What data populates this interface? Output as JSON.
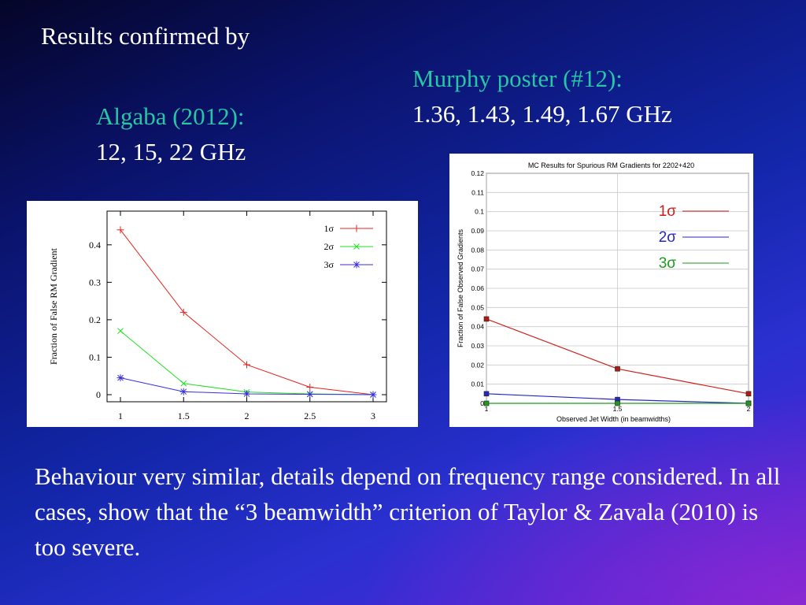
{
  "slide": {
    "title": "Results confirmed by",
    "algaba_heading": "Algaba (2012):",
    "algaba_freqs": "12, 15, 22 GHz",
    "murphy_heading": "Murphy poster (#12):",
    "murphy_freqs": "1.36, 1.43, 1.49, 1.67 GHz",
    "body": "Behaviour very similar, details depend on frequency range considered. In all cases, show that the “3 beamwidth” criterion of Taylor & Zavala (2010) is too severe.",
    "colors": {
      "accent_heading": "#27c6a4",
      "text": "#ffffff"
    }
  },
  "chart_data": [
    {
      "type": "line",
      "title": "",
      "xlabel": "",
      "ylabel": "Fraction of False RM Gradient",
      "x": [
        1,
        1.5,
        2,
        2.5,
        3
      ],
      "xticks": [
        "1",
        "1.5",
        "2",
        "2.5",
        "3"
      ],
      "yticks": [
        "0",
        "0.1",
        "0.2",
        "0.3",
        "0.4"
      ],
      "xlim": [
        1,
        3
      ],
      "ylim": [
        0,
        0.49
      ],
      "legend_position": "top-right",
      "series": [
        {
          "name": "1σ",
          "marker": "+",
          "color": "#e8241f",
          "values": [
            0.44,
            0.22,
            0.08,
            0.02,
            0.0
          ]
        },
        {
          "name": "2σ",
          "marker": "x",
          "color": "#22e022",
          "values": [
            0.17,
            0.03,
            0.007,
            0.002,
            0.0
          ]
        },
        {
          "name": "3σ",
          "marker": "*",
          "color": "#3a2ee0",
          "values": [
            0.045,
            0.008,
            0.002,
            0.001,
            0.0
          ]
        }
      ]
    },
    {
      "type": "line",
      "title": "MC Results for Spurious RM Gradients for 2202+420",
      "xlabel": "Observed Jet Width (in beamwidths)",
      "ylabel": "Fraction of False Observed Gradients",
      "x": [
        1,
        1.5,
        2
      ],
      "xticks": [
        "1",
        "1.5",
        "2"
      ],
      "yticks": [
        "0",
        "0.01",
        "0.02",
        "0.03",
        "0.04",
        "0.05",
        "0.06",
        "0.07",
        "0.08",
        "0.09",
        "0.1",
        "0.11",
        "0.12"
      ],
      "xlim": [
        1,
        2
      ],
      "ylim": [
        0,
        0.12
      ],
      "legend_position": "top-right",
      "series": [
        {
          "name": "1σ",
          "color": "#cc1f1a",
          "values": [
            0.044,
            0.018,
            0.005
          ]
        },
        {
          "name": "2σ",
          "color": "#2a25c0",
          "values": [
            0.005,
            0.002,
            0.0
          ]
        },
        {
          "name": "3σ",
          "color": "#1e9a1e",
          "values": [
            0.0,
            0.0,
            0.0
          ]
        }
      ]
    }
  ]
}
